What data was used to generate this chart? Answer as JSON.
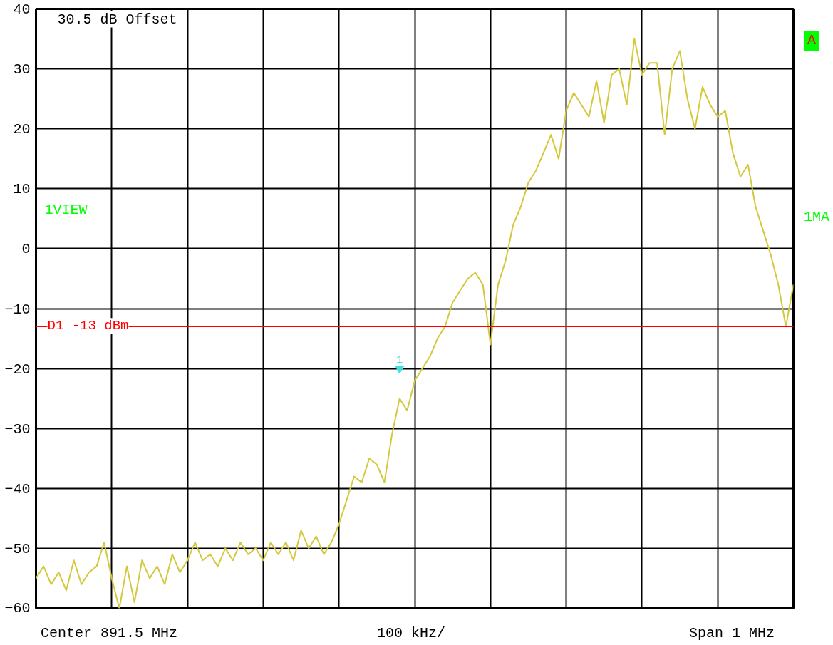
{
  "chart_data": {
    "type": "line",
    "categories": [
      null,
      null,
      null,
      null,
      null,
      null,
      null,
      null,
      null,
      null,
      null,
      null,
      null,
      null,
      null,
      null,
      null,
      null,
      null,
      null,
      null,
      null,
      null,
      null,
      null,
      null,
      null,
      null,
      null,
      null,
      null,
      null,
      null,
      null,
      null,
      null,
      null,
      null,
      null,
      null,
      null,
      null,
      null,
      null,
      null,
      null,
      null,
      null,
      null,
      null,
      null,
      null,
      null,
      null,
      null,
      null,
      null,
      null,
      null,
      null,
      null,
      null,
      null,
      null,
      null,
      null,
      null,
      null,
      null,
      null,
      null,
      null,
      null,
      null,
      null,
      null,
      null,
      null,
      null,
      null,
      null,
      null,
      null,
      null,
      null,
      null,
      null,
      null,
      null,
      null,
      null,
      null,
      null,
      null,
      null,
      null,
      null,
      null,
      null,
      null,
      null
    ],
    "series": [
      {
        "color": "#d4c83c",
        "values": [
          -55,
          -53,
          -56,
          -54,
          -57,
          -52,
          -56,
          -54,
          -53,
          -49,
          -55,
          -60,
          -53,
          -59,
          -52,
          -55,
          -53,
          -56,
          -51,
          -54,
          -52,
          -49,
          -52,
          -51,
          -53,
          -50,
          -52,
          -49,
          -51,
          -50,
          -52,
          -49,
          -51,
          -49,
          -52,
          -47,
          -50,
          -48,
          -51,
          -49,
          -46,
          -42,
          -38,
          -39,
          -35,
          -36,
          -39,
          -31,
          -25,
          -27,
          -22,
          -20,
          -18,
          -15,
          -13,
          -9,
          -7,
          -5,
          -4,
          -6,
          -16,
          -6,
          -2,
          4,
          7,
          11,
          13,
          16,
          19,
          15,
          23,
          26,
          24,
          22,
          28,
          21,
          29,
          30,
          24,
          35,
          29,
          31,
          31,
          19,
          30,
          33,
          25,
          20,
          27,
          24,
          22,
          23,
          16,
          12,
          14,
          7,
          3,
          -1,
          -6,
          -13,
          -6
        ]
      },
      {
        "type": "scatter",
        "name": "1",
        "color": "#40e0e0",
        "marker": "triangle_down",
        "values": [
          null,
          null,
          null,
          null,
          null,
          null,
          null,
          null,
          null,
          null,
          null,
          null,
          null,
          null,
          null,
          null,
          null,
          null,
          null,
          null,
          null,
          null,
          null,
          null,
          null,
          null,
          null,
          null,
          null,
          null,
          null,
          null,
          null,
          null,
          null,
          null,
          null,
          null,
          null,
          null,
          null,
          null,
          null,
          null,
          null,
          null,
          null,
          null,
          -20,
          null,
          null,
          null,
          null,
          null,
          null,
          null,
          null,
          null,
          null,
          null,
          null,
          null,
          null,
          null,
          null,
          null,
          null,
          null,
          null,
          null,
          null,
          null,
          null,
          null,
          null,
          null,
          null,
          null,
          null,
          null,
          null,
          null,
          null,
          null,
          null,
          null,
          null,
          null,
          null,
          null,
          null,
          null,
          null,
          null,
          null,
          null,
          null,
          null,
          null,
          null,
          null
        ]
      }
    ],
    "ylim": [
      -60,
      40
    ],
    "yticks": [
      -60,
      -50,
      -40,
      -30,
      -20,
      -10,
      0,
      10,
      20,
      30,
      40
    ],
    "grid": true,
    "marker": "none",
    "line_style": "solid",
    "ref_lines": [
      {
        "axis": "y",
        "value": -13,
        "label": "D1 -13 dBm",
        "color": "#ff0000"
      }
    ],
    "annotations": [
      "30.5 dB Offset",
      "1VIEW",
      "1MA",
      "A",
      "Center 891.5 MHz",
      "100 kHz/",
      "Span 1 MHz"
    ]
  }
}
